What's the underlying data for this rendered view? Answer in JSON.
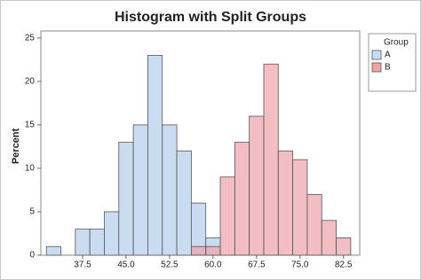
{
  "chart_data": {
    "type": "histogram",
    "title": "Histogram with Split Groups",
    "y_label": "Percent",
    "bins": [
      31.25,
      33.75,
      36.25,
      38.75,
      41.25,
      43.75,
      46.25,
      48.75,
      51.25,
      53.75,
      56.25,
      58.75,
      61.25,
      63.75,
      66.25,
      68.75,
      71.25,
      73.75,
      76.25,
      78.75,
      81.25,
      83.75
    ],
    "series": [
      {
        "name": "A",
        "color": "#c9dcf0",
        "values": [
          1,
          0,
          3,
          3,
          5,
          13,
          15,
          23,
          15,
          12,
          6,
          2,
          0,
          0,
          0,
          0,
          0,
          0,
          0,
          0,
          0
        ]
      },
      {
        "name": "B",
        "color": "#eda3a9",
        "values": [
          0,
          0,
          0,
          0,
          0,
          0,
          0,
          0,
          0,
          0,
          1,
          1,
          9,
          13,
          16,
          22,
          12,
          11,
          7,
          4,
          2
        ]
      }
    ],
    "legend_title": "Group",
    "legend_position": "right",
    "xlim": [
      30.3,
      85.3
    ],
    "xticks": [
      37.5,
      {
        "value": 45,
        "label": "45.0"
      },
      52.5,
      {
        "value": 60,
        "label": "60.0"
      },
      67.5,
      {
        "value": 75,
        "label": "75.0"
      },
      82.5
    ],
    "ylim": [
      0,
      25.8
    ],
    "yticks": [
      0,
      5,
      10,
      15,
      20,
      25
    ]
  }
}
